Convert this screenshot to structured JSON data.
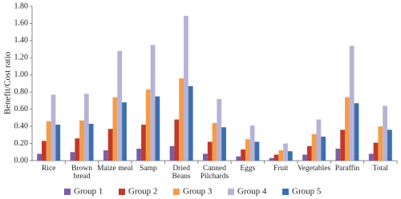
{
  "chart_data": {
    "type": "bar",
    "y_label": "Benefit/Cost ratio",
    "categories": [
      "Rice",
      "Brown bread",
      "Maize meal",
      "Samp",
      "Dried Beans",
      "Canned Pilchards",
      "Eggs",
      "Fruit",
      "Vegetables",
      "Paraffin",
      "Total"
    ],
    "series": [
      {
        "name": "Group 1",
        "color": "#7b5ea7",
        "values": [
          0.08,
          0.1,
          0.12,
          0.14,
          0.17,
          0.08,
          0.05,
          0.03,
          0.07,
          0.14,
          0.08
        ]
      },
      {
        "name": "Group 2",
        "color": "#c0392b",
        "values": [
          0.23,
          0.26,
          0.37,
          0.42,
          0.48,
          0.22,
          0.13,
          0.07,
          0.17,
          0.36,
          0.21
        ]
      },
      {
        "name": "Group 3",
        "color": "#f39c4a",
        "values": [
          0.46,
          0.47,
          0.74,
          0.83,
          0.96,
          0.44,
          0.25,
          0.12,
          0.31,
          0.74,
          0.4
        ]
      },
      {
        "name": "Group 4",
        "color": "#b8b3d6",
        "values": [
          0.77,
          0.78,
          1.28,
          1.35,
          1.69,
          0.72,
          0.41,
          0.2,
          0.48,
          1.34,
          0.64
        ]
      },
      {
        "name": "Group 5",
        "color": "#3a6fb0",
        "values": [
          0.42,
          0.43,
          0.68,
          0.75,
          0.87,
          0.39,
          0.22,
          0.11,
          0.28,
          0.67,
          0.36
        ]
      }
    ],
    "ylim": [
      0,
      1.8
    ],
    "yticks": [
      {
        "value": 0,
        "label": "0.00"
      },
      {
        "value": 0.2,
        "label": "0.20"
      },
      {
        "value": 0.4,
        "label": "0.40"
      },
      {
        "value": 0.6,
        "label": "0.60"
      },
      {
        "value": 0.8,
        "label": "0.80"
      },
      {
        "value": 1.0,
        "label": "1.00"
      },
      {
        "value": 1.2,
        "label": "1.20"
      },
      {
        "value": 1.4,
        "label": "1.40"
      },
      {
        "value": 1.6,
        "label": "1.60"
      },
      {
        "value": 1.8,
        "label": "1.80"
      }
    ],
    "grid": false
  }
}
